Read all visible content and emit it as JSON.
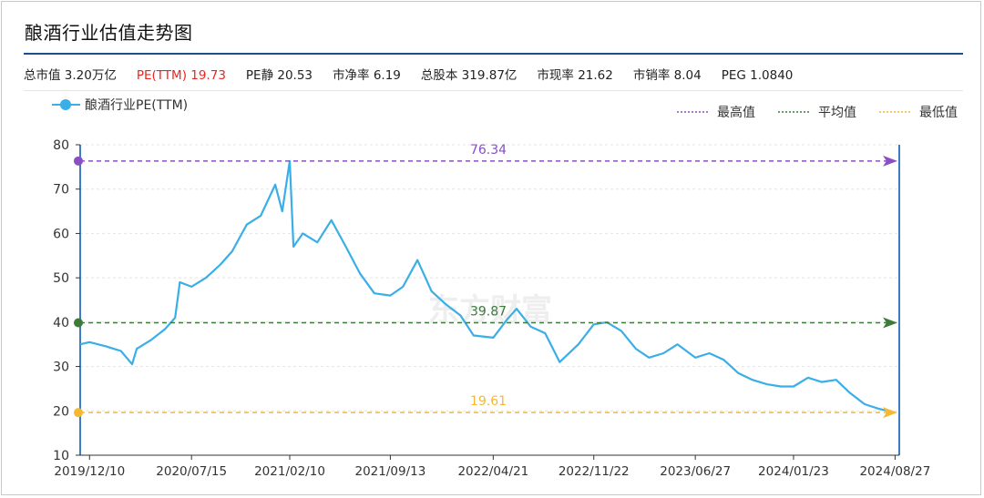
{
  "title": "酿酒行业估值走势图",
  "stats": [
    {
      "label": "总市值",
      "value": "3.20万亿",
      "highlight": false
    },
    {
      "label": "PE(TTM)",
      "value": "19.73",
      "highlight": true
    },
    {
      "label": "PE静",
      "value": "20.53",
      "highlight": false
    },
    {
      "label": "市净率",
      "value": "6.19",
      "highlight": false
    },
    {
      "label": "总股本",
      "value": "319.87亿",
      "highlight": false
    },
    {
      "label": "市现率",
      "value": "21.62",
      "highlight": false
    },
    {
      "label": "市销率",
      "value": "8.04",
      "highlight": false
    },
    {
      "label": "PEG",
      "value": "1.0840",
      "highlight": false
    }
  ],
  "colors": {
    "series": "#3aaee6",
    "max": "#8b4fc4",
    "avg": "#3e7a3a",
    "min": "#f7b733",
    "axis": "#3b7dc4"
  },
  "chart_data": {
    "type": "line",
    "series": [
      {
        "name": "酿酒行业PE(TTM)",
        "x": [
          "2019/11/20",
          "2019/12/10",
          "2020/01/15",
          "2020/02/15",
          "2020/03/10",
          "2020/03/20",
          "2020/04/20",
          "2020/05/20",
          "2020/06/10",
          "2020/06/20",
          "2020/07/15",
          "2020/08/15",
          "2020/09/15",
          "2020/10/10",
          "2020/11/10",
          "2020/12/10",
          "2021/01/10",
          "2021/01/25",
          "2021/02/10",
          "2021/02/18",
          "2021/03/10",
          "2021/04/10",
          "2021/05/10",
          "2021/06/10",
          "2021/07/10",
          "2021/08/10",
          "2021/09/13",
          "2021/10/10",
          "2021/11/10",
          "2021/12/10",
          "2022/01/10",
          "2022/02/10",
          "2022/03/10",
          "2022/04/21",
          "2022/05/20",
          "2022/06/10",
          "2022/07/10",
          "2022/08/10",
          "2022/09/10",
          "2022/10/20",
          "2022/11/22",
          "2022/12/20",
          "2023/01/20",
          "2023/02/20",
          "2023/03/20",
          "2023/04/20",
          "2023/05/20",
          "2023/06/27",
          "2023/07/27",
          "2023/08/27",
          "2023/09/27",
          "2023/10/27",
          "2023/11/27",
          "2023/12/27",
          "2024/01/23",
          "2024/02/23",
          "2024/03/23",
          "2024/04/23",
          "2024/05/23",
          "2024/06/23",
          "2024/07/23",
          "2024/08/27"
        ],
        "y": [
          35,
          35.5,
          34.5,
          33.5,
          30.5,
          34,
          36,
          38.5,
          41,
          49,
          48,
          50,
          53,
          56,
          62,
          64,
          71,
          65,
          76.34,
          57,
          60,
          58,
          63,
          57,
          51,
          46.5,
          46,
          48,
          54,
          47,
          44,
          41.5,
          37,
          36.5,
          40.5,
          43,
          39,
          37.5,
          31,
          35,
          39.5,
          40,
          38,
          34,
          32,
          33,
          35,
          32,
          33,
          31.5,
          28.5,
          27,
          26,
          25.5,
          25.5,
          27.5,
          26.5,
          27,
          24,
          21.5,
          20.5,
          19.61
        ]
      }
    ],
    "reference_lines": [
      {
        "name": "最高值",
        "value": 76.34,
        "label": "76.34"
      },
      {
        "name": "平均值",
        "value": 39.87,
        "label": "39.87"
      },
      {
        "name": "最低值",
        "value": 19.61,
        "label": "19.61"
      }
    ],
    "x_ticks": [
      "2019/12/10",
      "2020/07/15",
      "2021/02/10",
      "2021/09/13",
      "2022/04/21",
      "2022/11/22",
      "2023/06/27",
      "2024/01/23",
      "2024/08/27"
    ],
    "y_ticks": [
      10,
      20,
      30,
      40,
      50,
      60,
      70,
      80
    ],
    "ylim": [
      10,
      80
    ],
    "xlim": [
      "2019/11/20",
      "2024/09/05"
    ],
    "grid": true,
    "legend_position": "top"
  },
  "watermark": "东方财富"
}
